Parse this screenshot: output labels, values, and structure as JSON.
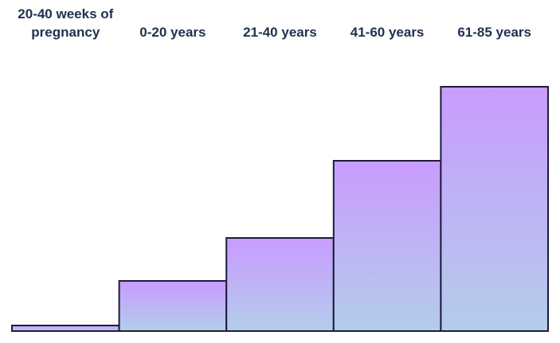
{
  "chart_data": {
    "type": "bar",
    "categories": [
      "20-40 weeks of pregnancy",
      "0-20 years",
      "21-40 years",
      "41-60 years",
      "61-85 years"
    ],
    "values": [
      7,
      63,
      117,
      214,
      307
    ],
    "ylim": [
      0,
      320
    ],
    "gradient": [
      "#c99bff",
      "#b3cdea"
    ],
    "stroke": "#1c1c3c"
  }
}
